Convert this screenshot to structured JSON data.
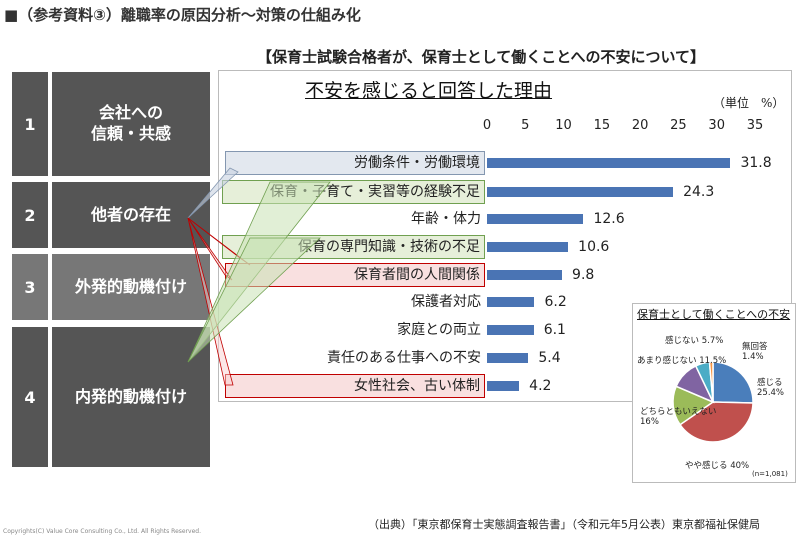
{
  "title": "■（参考資料③）離職率の原因分析～対策の仕組み化",
  "subtitle": "【保育士試験合格者が、保育士として働くことへの不安について】",
  "factors": [
    {
      "num": "1",
      "label": "会社への\n信頼・共感"
    },
    {
      "num": "2",
      "label": "他者の存在"
    },
    {
      "num": "3",
      "label": "外発的動機付け"
    },
    {
      "num": "4",
      "label": "内発的動機付け"
    }
  ],
  "chart_data": [
    {
      "type": "bar",
      "title": "不安を感じると回答した理由",
      "unit_label": "（単位　%）",
      "xlim": [
        0,
        35
      ],
      "ticks": [
        "0",
        "5",
        "10",
        "15",
        "20",
        "25",
        "30",
        "35"
      ],
      "categories": [
        "労働条件・労働環境",
        "保育・子育て・実習等の経験不足",
        "年齢・体力",
        "保育の専門知識・技術の不足",
        "保育者間の人間関係",
        "保護者対応",
        "家庭との両立",
        "責任のある仕事への不安",
        "女性社会、古い体制"
      ],
      "values": [
        31.8,
        24.3,
        12.6,
        10.6,
        9.8,
        6.2,
        6.1,
        5.4,
        4.2
      ],
      "value_labels": [
        "31.8",
        "24.3",
        "12.6",
        "10.6",
        "9.8",
        "6.2",
        "6.1",
        "5.4",
        "4.2"
      ],
      "highlight": [
        "blue",
        "green",
        "none",
        "green",
        "red",
        "none",
        "none",
        "none",
        "red"
      ],
      "bar_color": "#4a74b4"
    },
    {
      "type": "pie",
      "title": "保育士として働くことへの不安",
      "note": "(n=1,081)",
      "slices": [
        {
          "label": "感じる",
          "value": 25.4,
          "text": "25.4%",
          "color": "#4a7ebb"
        },
        {
          "label": "やや感じる",
          "value": 40,
          "text": "40%",
          "color": "#c0504d"
        },
        {
          "label": "どちらともいえない",
          "value": 16,
          "text": "16%",
          "color": "#9bbb59"
        },
        {
          "label": "あまり感じない",
          "value": 11.5,
          "text": "11.5%",
          "color": "#8064a2"
        },
        {
          "label": "感じない",
          "value": 5.7,
          "text": "5.7%",
          "color": "#4bacc6"
        },
        {
          "label": "無回答",
          "value": 1.4,
          "text": "1.4%",
          "color": "#f79646"
        }
      ]
    }
  ],
  "source": "（出典）「東京都保育士実態調査報告書」（令和元年5月公表）東京都福祉保健局",
  "copyright": "Copyrights(C) Value Core Consulting Co., Ltd.  All Rights Reserved."
}
